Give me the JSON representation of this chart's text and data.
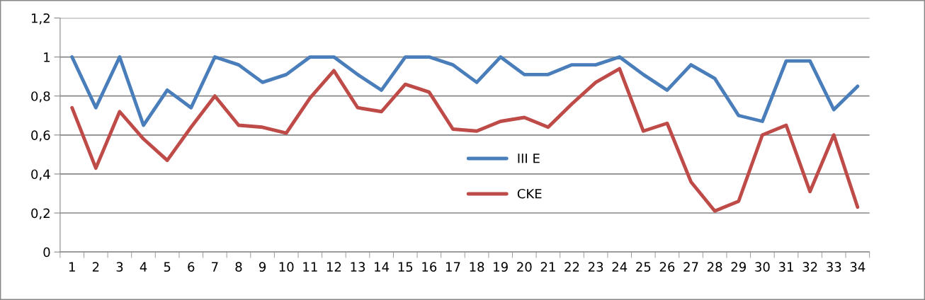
{
  "chart_data": {
    "type": "line",
    "categories": [
      "1",
      "2",
      "3",
      "4",
      "5",
      "6",
      "7",
      "8",
      "9",
      "10",
      "11",
      "12",
      "13",
      "14",
      "15",
      "16",
      "17",
      "18",
      "19",
      "20",
      "21",
      "22",
      "23",
      "24",
      "25",
      "26",
      "27",
      "28",
      "29",
      "30",
      "31",
      "32",
      "33",
      "34"
    ],
    "series": [
      {
        "name": "III E",
        "color": "#4a7ebb",
        "values": [
          1,
          0.74,
          1,
          0.65,
          0.83,
          0.74,
          1,
          0.96,
          0.87,
          0.91,
          1,
          1,
          0.91,
          0.83,
          1,
          1,
          0.96,
          0.87,
          1,
          0.91,
          0.91,
          0.96,
          0.96,
          1,
          0.91,
          0.83,
          0.96,
          0.89,
          0.7,
          0.67,
          0.98,
          0.98,
          0.73,
          0.85
        ]
      },
      {
        "name": "CKE",
        "color": "#be4b48",
        "values": [
          0.74,
          0.43,
          0.72,
          0.58,
          0.47,
          0.64,
          0.8,
          0.65,
          0.64,
          0.61,
          0.79,
          0.93,
          0.74,
          0.72,
          0.86,
          0.82,
          0.63,
          0.62,
          0.67,
          0.69,
          0.64,
          0.76,
          0.87,
          0.94,
          0.62,
          0.66,
          0.36,
          0.21,
          0.26,
          0.6,
          0.65,
          0.31,
          0.6,
          0.23
        ]
      }
    ],
    "ylim": [
      0,
      1.2
    ],
    "yticks": [
      0,
      {
        "value": 0.2,
        "label": "0,2"
      },
      {
        "value": 0.4,
        "label": "0,4"
      },
      {
        "value": 0.6,
        "label": "0,6"
      },
      {
        "value": 0.8,
        "label": "0,8"
      },
      1,
      {
        "value": 1.2,
        "label": "1,2"
      }
    ],
    "grid": "y",
    "legend": "center",
    "marker": "none",
    "line_style": "solid"
  }
}
